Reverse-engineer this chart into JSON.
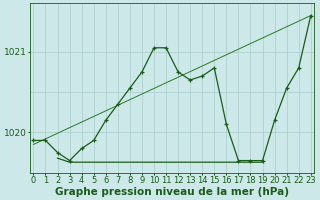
{
  "xlabel": "Graphe pression niveau de la mer (hPa)",
  "bg_color": "#cde8e8",
  "grid_color": "#aacccc",
  "line_color_dark": "#1a5c1a",
  "line_color_thin": "#2a7a2a",
  "yticks": [
    1020,
    1021
  ],
  "ylim": [
    1019.5,
    1021.6
  ],
  "xlim": [
    -0.3,
    23.3
  ],
  "xticks": [
    0,
    1,
    2,
    3,
    4,
    5,
    6,
    7,
    8,
    9,
    10,
    11,
    12,
    13,
    14,
    15,
    16,
    17,
    18,
    19,
    20,
    21,
    22,
    23
  ],
  "hgrid_lines": [
    1020.0,
    1020.5,
    1021.0
  ],
  "series1_x": [
    0,
    1,
    2,
    3,
    4,
    5,
    6,
    7,
    8,
    9,
    10,
    11,
    12,
    13,
    14,
    15,
    16,
    17,
    18,
    19,
    20,
    21,
    22,
    23
  ],
  "series1_y": [
    1019.9,
    1019.9,
    1019.75,
    1019.65,
    1019.8,
    1019.9,
    1020.15,
    1020.35,
    1020.55,
    1020.75,
    1021.05,
    1021.05,
    1020.75,
    1020.65,
    1020.7,
    1020.8,
    1020.1,
    1019.65,
    1019.65,
    1019.65,
    1020.15,
    1020.55,
    1020.8,
    1021.45
  ],
  "series2_x": [
    0,
    23
  ],
  "series2_y": [
    1019.85,
    1021.45
  ],
  "series3_x": [
    2,
    3,
    4,
    5,
    6,
    7,
    8,
    9,
    10,
    11,
    12,
    13,
    14,
    15,
    16,
    17,
    18,
    19
  ],
  "series3_y": [
    1019.68,
    1019.63,
    1019.63,
    1019.63,
    1019.63,
    1019.63,
    1019.63,
    1019.63,
    1019.63,
    1019.63,
    1019.63,
    1019.63,
    1019.63,
    1019.63,
    1019.63,
    1019.63,
    1019.63,
    1019.63
  ],
  "xlabel_fontsize": 7.5,
  "tick_fontsize": 6.0,
  "ytick_fontsize": 6.5
}
